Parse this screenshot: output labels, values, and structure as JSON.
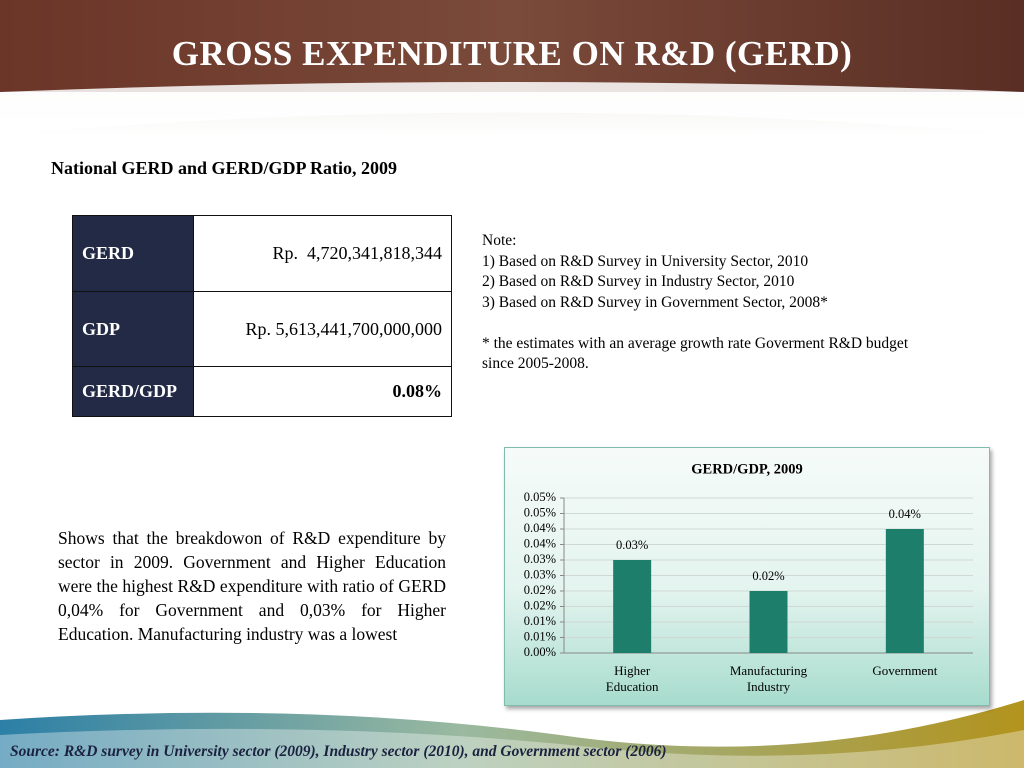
{
  "header": {
    "title": "GROSS EXPENDITURE ON R&D (GERD)"
  },
  "table": {
    "caption": "National GERD and GERD/GDP Ratio, 2009",
    "rows": [
      [
        "GERD",
        "Rp.  4,720,341,818,344"
      ],
      [
        "GDP",
        "Rp. 5,613,441,700,000,000"
      ],
      [
        "GERD/GDP",
        "0.08%"
      ]
    ]
  },
  "notes": {
    "title": "Note:",
    "items": [
      "1) Based on R&D Survey in University Sector, 2010",
      "2) Based on R&D Survey in Industry Sector, 2010",
      "3) Based on R&D Survey in Government Sector, 2008*"
    ],
    "footnote": "* the estimates with an average growth rate Goverment R&D budget  since 2005-2008."
  },
  "paragraph": "Shows that the breakdowon of R&D expenditure by sector in 2009. Government and Higher Education were the highest R&D expenditure with ratio of GERD 0,04% for Government and 0,03% for Higher Education. Manufacturing industry was a lowest",
  "chart_data": {
    "type": "bar",
    "title": "GERD/GDP, 2009",
    "categories": [
      "Higher Education",
      "Manufacturing Industry",
      "Government"
    ],
    "values": [
      0.03,
      0.02,
      0.04
    ],
    "value_labels": [
      "0.03%",
      "0.02%",
      "0.04%"
    ],
    "color": "#1e7e6c",
    "ylim": [
      0,
      0.05
    ],
    "yticks": [
      {
        "value": 0,
        "label": "0.00%"
      },
      {
        "value": 0.005,
        "label": "0.01%"
      },
      {
        "value": 0.01,
        "label": "0.01%"
      },
      {
        "value": 0.015,
        "label": "0.02%"
      },
      {
        "value": 0.02,
        "label": "0.02%"
      },
      {
        "value": 0.025,
        "label": "0.03%"
      },
      {
        "value": 0.03,
        "label": "0.03%"
      },
      {
        "value": 0.035,
        "label": "0.04%"
      },
      {
        "value": 0.04,
        "label": "0.04%"
      },
      {
        "value": 0.045,
        "label": "0.05%"
      },
      {
        "value": 0.05,
        "label": "0.05%"
      }
    ],
    "grid": true
  },
  "source": "Source: R&D survey in University sector (2009), Industry sector (2010), and Government sector (2006)"
}
